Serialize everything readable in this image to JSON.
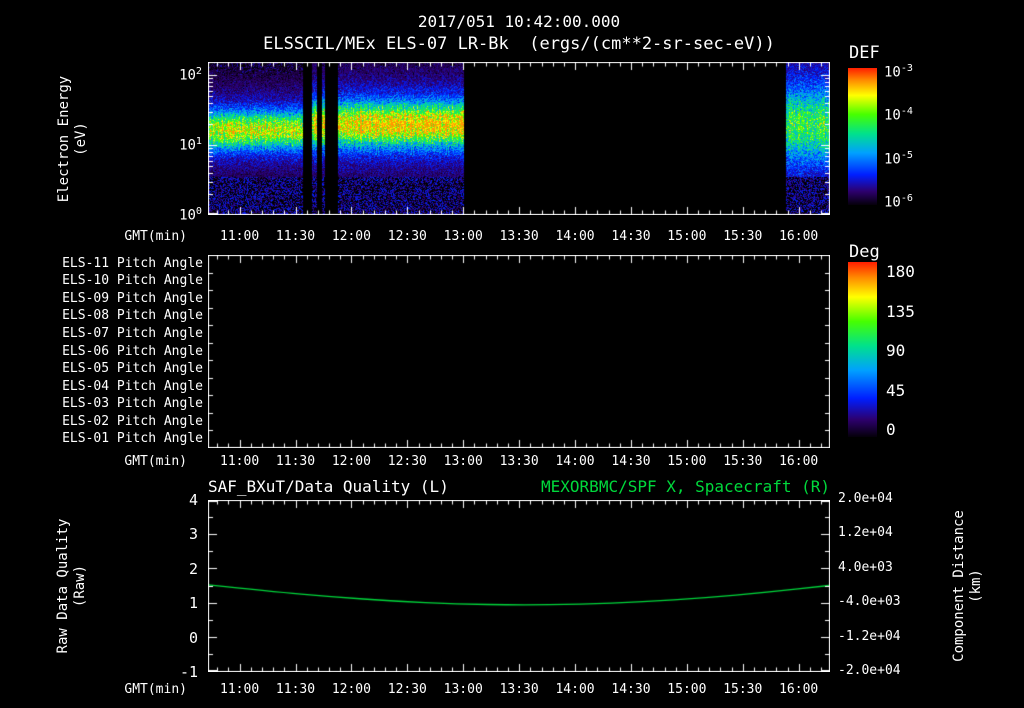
{
  "header": {
    "timestamp": "2017/051 10:42:00.000"
  },
  "colors": {
    "background": "#000000",
    "text": "#ffffff",
    "accent_green": "#00d93c"
  },
  "chart_data": [
    {
      "type": "heatmap",
      "title": "ELSSCIL/MEx ELS-07 LR-Bk  (ergs/(cm**2-sr-sec-eV))",
      "xlabel": "GMT(min)",
      "ylabel_lines": [
        "Electron Energy",
        "(eV)"
      ],
      "y_scale": "log",
      "y_tick_exponents": [
        2,
        1,
        0
      ],
      "y_decades_span": 2.19,
      "x_tick_labels": [
        "11:00",
        "11:30",
        "12:00",
        "12:30",
        "13:00",
        "13:30",
        "14:00",
        "14:30",
        "15:00",
        "15:30",
        "16:00"
      ],
      "colorbar": {
        "label": "DEF",
        "unit_exponents": [
          -3,
          -4,
          -5,
          -6
        ],
        "colormap": "rainbow"
      },
      "segments": [
        {
          "x0": 0.0,
          "x1": 0.158,
          "band_center": 1.22,
          "band_sigma": 0.17,
          "amp": 0.74,
          "halo": 0.42,
          "hot": 0.12
        },
        {
          "x0": 0.158,
          "x1": 0.41,
          "band_center": 1.3,
          "band_sigma": 0.2,
          "amp": 0.78,
          "halo": 0.45,
          "hot": 0.3
        },
        {
          "x0": 0.928,
          "x1": 1.0,
          "band_center": 1.3,
          "band_sigma": 0.34,
          "amp": 0.52,
          "halo": 0.4,
          "hot": 0.0
        }
      ],
      "dropouts": [
        [
          0.152,
          0.167
        ],
        [
          0.174,
          0.183
        ],
        [
          0.188,
          0.208
        ]
      ]
    },
    {
      "type": "heatmap",
      "xlabel": "GMT(min)",
      "row_labels": [
        "ELS-11 Pitch Angle",
        "ELS-10 Pitch Angle",
        "ELS-09 Pitch Angle",
        "ELS-08 Pitch Angle",
        "ELS-07 Pitch Angle",
        "ELS-06 Pitch Angle",
        "ELS-05 Pitch Angle",
        "ELS-04 Pitch Angle",
        "ELS-03 Pitch Angle",
        "ELS-02 Pitch Angle",
        "ELS-01 Pitch Angle"
      ],
      "x_tick_labels": [
        "11:00",
        "11:30",
        "12:00",
        "12:30",
        "13:00",
        "13:30",
        "14:00",
        "14:30",
        "15:00",
        "15:30",
        "16:00"
      ],
      "colorbar": {
        "label": "Deg",
        "ticks": [
          180,
          135,
          90,
          45,
          0
        ],
        "colormap": "rainbow"
      },
      "values": []
    },
    {
      "type": "line",
      "title_left": "SAF_BXuT/Data Quality (L)",
      "title_right": "MEXORBMC/SPF X, Spacecraft (R)",
      "xlabel": "GMT(min)",
      "ylabel_left_lines": [
        "Raw Data Quality",
        "(Raw)"
      ],
      "ylabel_right_lines": [
        "Component Distance",
        "(km)"
      ],
      "yticks_left": [
        4,
        3,
        2,
        1,
        0,
        -1
      ],
      "ylim_left": [
        -1,
        4
      ],
      "yticks_right_labels": [
        "2.0e+04",
        "1.2e+04",
        "4.0e+03",
        "-4.0e+03",
        "-1.2e+04",
        "-2.0e+04"
      ],
      "ylim_right": [
        -20000,
        20000
      ],
      "x_tick_labels": [
        "11:00",
        "11:30",
        "12:00",
        "12:30",
        "13:00",
        "13:30",
        "14:00",
        "14:30",
        "15:00",
        "15:30",
        "16:00"
      ],
      "series": [
        {
          "name": "MEXORBMC/SPF X, Spacecraft",
          "color": "#00d93c",
          "x_frac": [
            0,
            0.1,
            0.2,
            0.3,
            0.4,
            0.5,
            0.6,
            0.7,
            0.8,
            0.9,
            1.0
          ],
          "y_left": [
            1.52,
            1.33,
            1.17,
            1.04,
            0.96,
            0.93,
            0.95,
            1.02,
            1.14,
            1.3,
            1.5
          ]
        }
      ]
    }
  ]
}
